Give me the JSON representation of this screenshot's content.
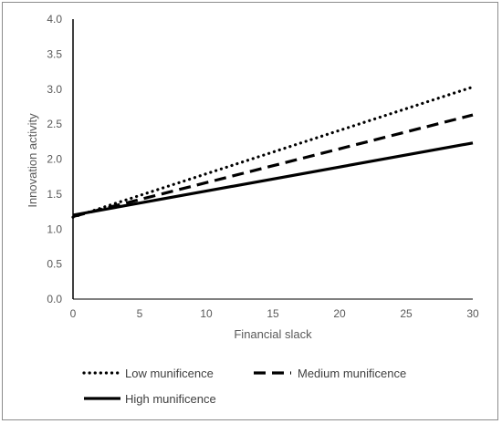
{
  "chart_data": {
    "type": "line",
    "title": "",
    "xlabel": "Financial slack",
    "ylabel": "Innovation activity",
    "xlim": [
      0,
      30
    ],
    "ylim": [
      0,
      4
    ],
    "xticks": [
      "0",
      "5",
      "10",
      "15",
      "20",
      "25",
      "30"
    ],
    "xtick_values": [
      0,
      5,
      10,
      15,
      20,
      25,
      30
    ],
    "yticks": [
      "0.0",
      "0.5",
      "1.0",
      "1.5",
      "2.0",
      "2.5",
      "3.0",
      "3.5",
      "4.0"
    ],
    "ytick_values": [
      0,
      0.5,
      1,
      1.5,
      2,
      2.5,
      3,
      3.5,
      4
    ],
    "grid": false,
    "legend_position": "bottom",
    "series": [
      {
        "name": "Low munificence",
        "style": "dotted",
        "color": "#000000",
        "x": [
          0,
          30
        ],
        "y": [
          1.17,
          3.03
        ]
      },
      {
        "name": "Medium munificence",
        "style": "dashed",
        "color": "#000000",
        "x": [
          0,
          30
        ],
        "y": [
          1.18,
          2.63
        ]
      },
      {
        "name": "High munificence",
        "style": "solid",
        "color": "#000000",
        "x": [
          0,
          30
        ],
        "y": [
          1.2,
          2.23
        ]
      }
    ]
  }
}
